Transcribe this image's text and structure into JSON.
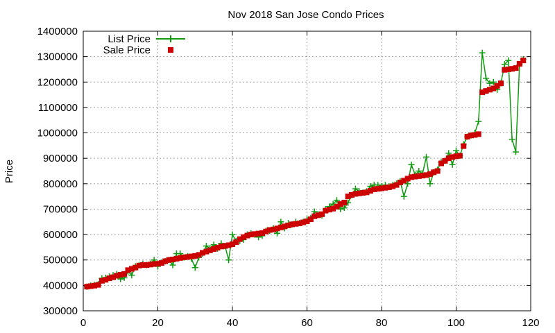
{
  "chart_data": {
    "type": "line",
    "title": "Nov 2018 San Jose Condo Prices",
    "xlabel": "",
    "ylabel": "Price",
    "xlim": [
      0,
      120
    ],
    "ylim": [
      300000,
      1400000
    ],
    "xticks": [
      0,
      20,
      40,
      60,
      80,
      100,
      120
    ],
    "yticks": [
      300000,
      400000,
      500000,
      600000,
      700000,
      800000,
      900000,
      1000000,
      1100000,
      1200000,
      1300000,
      1400000
    ],
    "grid": true,
    "legend_position": "top-left",
    "series": [
      {
        "name": "List Price",
        "style": "line-with-plus-markers",
        "color": "#119911",
        "x": [
          1,
          2,
          3,
          4,
          5,
          6,
          7,
          8,
          9,
          10,
          11,
          12,
          13,
          14,
          15,
          16,
          17,
          18,
          19,
          20,
          21,
          22,
          23,
          24,
          25,
          26,
          27,
          28,
          29,
          30,
          31,
          32,
          33,
          34,
          35,
          36,
          37,
          38,
          39,
          40,
          41,
          42,
          43,
          44,
          45,
          46,
          47,
          48,
          49,
          50,
          51,
          52,
          53,
          54,
          55,
          56,
          57,
          58,
          59,
          60,
          61,
          62,
          63,
          64,
          65,
          66,
          67,
          68,
          69,
          70,
          71,
          72,
          73,
          74,
          75,
          76,
          77,
          78,
          79,
          80,
          81,
          82,
          83,
          84,
          85,
          86,
          87,
          88,
          89,
          90,
          91,
          92,
          93,
          94,
          95,
          96,
          97,
          98,
          99,
          100,
          101,
          102,
          103,
          104,
          105,
          106,
          107,
          108,
          109,
          110,
          111,
          112,
          113,
          114,
          115,
          116,
          117,
          118
        ],
        "y": [
          395000,
          399000,
          402000,
          405000,
          428000,
          430000,
          435000,
          440000,
          445000,
          425000,
          430000,
          455000,
          440000,
          475000,
          480000,
          485000,
          480000,
          485000,
          500000,
          475000,
          490000,
          495000,
          500000,
          480000,
          525000,
          525000,
          510000,
          515000,
          505000,
          470000,
          510000,
          525000,
          555000,
          545000,
          560000,
          545000,
          565000,
          555000,
          500000,
          600000,
          575000,
          575000,
          580000,
          600000,
          605000,
          600000,
          590000,
          595000,
          615000,
          615000,
          625000,
          605000,
          650000,
          625000,
          645000,
          640000,
          650000,
          645000,
          650000,
          660000,
          665000,
          690000,
          680000,
          675000,
          700000,
          710000,
          720000,
          735000,
          700000,
          705000,
          725000,
          755000,
          780000,
          770000,
          765000,
          770000,
          790000,
          795000,
          795000,
          790000,
          795000,
          790000,
          795000,
          800000,
          810000,
          750000,
          800000,
          875000,
          835000,
          850000,
          840000,
          905000,
          800000,
          845000,
          855000,
          885000,
          890000,
          920000,
          875000,
          930000,
          910000,
          955000,
          985000,
          990000,
          1000000,
          1045000,
          1315000,
          1215000,
          1195000,
          1200000,
          1170000,
          1195000,
          1270000,
          1285000,
          975000,
          925000,
          1270000,
          1290000
        ]
      },
      {
        "name": "Sale Price",
        "style": "square-markers",
        "color": "#cc0000",
        "x": [
          1,
          2,
          3,
          4,
          5,
          6,
          7,
          8,
          9,
          10,
          11,
          12,
          13,
          14,
          15,
          16,
          17,
          18,
          19,
          20,
          21,
          22,
          23,
          24,
          25,
          26,
          27,
          28,
          29,
          30,
          31,
          32,
          33,
          34,
          35,
          36,
          37,
          38,
          39,
          40,
          41,
          42,
          43,
          44,
          45,
          46,
          47,
          48,
          49,
          50,
          51,
          52,
          53,
          54,
          55,
          56,
          57,
          58,
          59,
          60,
          61,
          62,
          63,
          64,
          65,
          66,
          67,
          68,
          69,
          70,
          71,
          72,
          73,
          74,
          75,
          76,
          77,
          78,
          79,
          80,
          81,
          82,
          83,
          84,
          85,
          86,
          87,
          88,
          89,
          90,
          91,
          92,
          93,
          94,
          95,
          96,
          97,
          98,
          99,
          100,
          101,
          102,
          103,
          104,
          105,
          106,
          107,
          108,
          109,
          110,
          111,
          112,
          113,
          114,
          115,
          116,
          117,
          118
        ],
        "y": [
          395000,
          397000,
          399000,
          402000,
          418000,
          422000,
          428000,
          432000,
          438000,
          442000,
          445000,
          460000,
          465000,
          470000,
          478000,
          480000,
          480000,
          482000,
          484000,
          485000,
          488000,
          495000,
          500000,
          502000,
          505000,
          508000,
          510000,
          512000,
          514000,
          516000,
          520000,
          528000,
          533000,
          538000,
          543000,
          548000,
          553000,
          555000,
          558000,
          562000,
          570000,
          582000,
          590000,
          596000,
          600000,
          602000,
          604000,
          606000,
          612000,
          618000,
          620000,
          624000,
          628000,
          632000,
          636000,
          640000,
          642000,
          644000,
          648000,
          652000,
          660000,
          672000,
          676000,
          680000,
          694000,
          698000,
          702000,
          710000,
          720000,
          726000,
          750000,
          756000,
          760000,
          762000,
          764000,
          766000,
          772000,
          778000,
          780000,
          782000,
          784000,
          786000,
          790000,
          795000,
          805000,
          812000,
          820000,
          826000,
          828000,
          830000,
          832000,
          834000,
          838000,
          845000,
          850000,
          880000,
          890000,
          900000,
          905000,
          908000,
          910000,
          948000,
          985000,
          990000,
          992000,
          995000,
          1160000,
          1165000,
          1170000,
          1175000,
          1185000,
          1195000,
          1248000,
          1250000,
          1252000,
          1255000,
          1272000,
          1285000
        ]
      }
    ]
  }
}
